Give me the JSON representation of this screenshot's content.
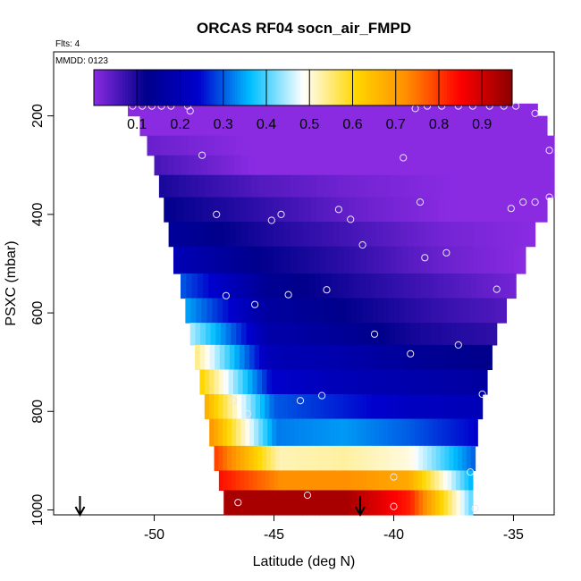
{
  "chart_data": {
    "type": "heatmap",
    "title": "ORCAS RF04 socn_air_FMPD",
    "flights_label": "Flts: 4",
    "date_label": "MMDD: 0123",
    "xlabel": "Latitude (deg N)",
    "ylabel": "PSXC (mbar)",
    "xlim": [
      -54.2,
      -33.3
    ],
    "ylim": [
      1010,
      70
    ],
    "x_ticks": [
      -50,
      -45,
      -40,
      -35
    ],
    "x_tick_labels": [
      "-50",
      "-45",
      "-40",
      "-35"
    ],
    "y_ticks": [
      200,
      400,
      600,
      800,
      1000
    ],
    "y_tick_labels": [
      "200",
      "400",
      "600",
      "800",
      "1000"
    ],
    "colorbar": {
      "ticks": [
        0.1,
        0.2,
        0.3,
        0.4,
        0.5,
        0.6,
        0.7,
        0.8,
        0.9
      ],
      "tick_labels": [
        "0.1",
        "0.2",
        "0.3",
        "0.4",
        "0.5",
        "0.6",
        "0.7",
        "0.8",
        "0.9"
      ],
      "range": [
        0,
        0.97
      ],
      "colors": [
        "#8a2be2",
        "#00008b",
        "#0000cd",
        "#00bfff",
        "#ffffff",
        "#ffd700",
        "#ff8c00",
        "#ff0000",
        "#8b0000"
      ]
    },
    "bands": [
      {
        "p_top": 175,
        "p_bot": 200,
        "lat_min": -51.1,
        "lat_max": -34.0,
        "values": [
          0.0,
          0.0,
          0.0,
          0.0,
          0.0
        ]
      },
      {
        "p_top": 200,
        "p_bot": 240,
        "lat_min": -50.6,
        "lat_max": -33.6,
        "values": [
          0.0,
          0.0,
          0.0,
          0.0,
          0.0
        ]
      },
      {
        "p_top": 240,
        "p_bot": 280,
        "lat_min": -50.3,
        "lat_max": -33.3,
        "values": [
          0.03,
          0.0,
          0.0,
          0.0,
          0.0
        ]
      },
      {
        "p_top": 280,
        "p_bot": 320,
        "lat_min": -50.0,
        "lat_max": -33.3,
        "values": [
          0.06,
          0.0,
          0.0,
          0.0,
          0.0
        ]
      },
      {
        "p_top": 320,
        "p_bot": 365,
        "lat_min": -49.8,
        "lat_max": -33.3,
        "values": [
          0.1,
          0.05,
          0.02,
          0.0,
          0.0
        ]
      },
      {
        "p_top": 365,
        "p_bot": 415,
        "lat_min": -49.6,
        "lat_max": -33.6,
        "values": [
          0.12,
          0.08,
          0.03,
          0.0,
          0.0
        ]
      },
      {
        "p_top": 415,
        "p_bot": 465,
        "lat_min": -49.4,
        "lat_max": -34.1,
        "values": [
          0.15,
          0.1,
          0.06,
          0.02,
          0.0
        ]
      },
      {
        "p_top": 465,
        "p_bot": 520,
        "lat_min": -49.2,
        "lat_max": -34.5,
        "values": [
          0.2,
          0.12,
          0.08,
          0.03,
          0.0
        ]
      },
      {
        "p_top": 520,
        "p_bot": 570,
        "lat_min": -48.9,
        "lat_max": -34.9,
        "values": [
          0.3,
          0.14,
          0.1,
          0.06,
          0.02
        ]
      },
      {
        "p_top": 570,
        "p_bot": 620,
        "lat_min": -48.7,
        "lat_max": -35.3,
        "values": [
          0.35,
          0.16,
          0.12,
          0.08,
          0.05
        ]
      },
      {
        "p_top": 620,
        "p_bot": 665,
        "lat_min": -48.5,
        "lat_max": -35.7,
        "values": [
          0.45,
          0.18,
          0.14,
          0.1,
          0.08
        ]
      },
      {
        "p_top": 665,
        "p_bot": 715,
        "lat_min": -48.3,
        "lat_max": -35.9,
        "values": [
          0.55,
          0.2,
          0.18,
          0.14,
          0.12
        ]
      },
      {
        "p_top": 715,
        "p_bot": 765,
        "lat_min": -48.1,
        "lat_max": -36.1,
        "values": [
          0.62,
          0.24,
          0.2,
          0.18,
          0.16
        ]
      },
      {
        "p_top": 765,
        "p_bot": 815,
        "lat_min": -47.9,
        "lat_max": -36.3,
        "values": [
          0.68,
          0.3,
          0.26,
          0.22,
          0.2
        ]
      },
      {
        "p_top": 815,
        "p_bot": 870,
        "lat_min": -47.7,
        "lat_max": -36.5,
        "values": [
          0.72,
          0.32,
          0.34,
          0.3,
          0.24
        ]
      },
      {
        "p_top": 870,
        "p_bot": 920,
        "lat_min": -47.5,
        "lat_max": -36.6,
        "values": [
          0.8,
          0.52,
          0.53,
          0.5,
          0.3
        ]
      },
      {
        "p_top": 920,
        "p_bot": 960,
        "lat_min": -47.3,
        "lat_max": -36.7,
        "values": [
          0.84,
          0.72,
          0.72,
          0.68,
          0.35
        ]
      },
      {
        "p_top": 960,
        "p_bot": 1010,
        "lat_min": -47.1,
        "lat_max": -36.7,
        "values": [
          0.94,
          0.94,
          0.94,
          0.82,
          0.4
        ]
      }
    ],
    "points": [
      {
        "lat": -50.9,
        "p": 180
      },
      {
        "lat": -50.5,
        "p": 180
      },
      {
        "lat": -50.1,
        "p": 180
      },
      {
        "lat": -49.7,
        "p": 180
      },
      {
        "lat": -49.3,
        "p": 180
      },
      {
        "lat": -48.6,
        "p": 180
      },
      {
        "lat": -48.5,
        "p": 190
      },
      {
        "lat": -39.1,
        "p": 185
      },
      {
        "lat": -38.6,
        "p": 180
      },
      {
        "lat": -38.0,
        "p": 180
      },
      {
        "lat": -37.3,
        "p": 180
      },
      {
        "lat": -36.7,
        "p": 180
      },
      {
        "lat": -36.0,
        "p": 180
      },
      {
        "lat": -35.4,
        "p": 180
      },
      {
        "lat": -34.9,
        "p": 180
      },
      {
        "lat": -34.1,
        "p": 195
      },
      {
        "lat": -33.5,
        "p": 270
      },
      {
        "lat": -48.0,
        "p": 280
      },
      {
        "lat": -39.6,
        "p": 285
      },
      {
        "lat": -33.5,
        "p": 365
      },
      {
        "lat": -34.6,
        "p": 375
      },
      {
        "lat": -35.1,
        "p": 388
      },
      {
        "lat": -38.9,
        "p": 375
      },
      {
        "lat": -34.1,
        "p": 375
      },
      {
        "lat": -47.4,
        "p": 400
      },
      {
        "lat": -45.1,
        "p": 412
      },
      {
        "lat": -44.7,
        "p": 400
      },
      {
        "lat": -42.3,
        "p": 390
      },
      {
        "lat": -41.8,
        "p": 410
      },
      {
        "lat": -41.3,
        "p": 462
      },
      {
        "lat": -38.7,
        "p": 488
      },
      {
        "lat": -37.8,
        "p": 478
      },
      {
        "lat": -47.0,
        "p": 565
      },
      {
        "lat": -45.8,
        "p": 583
      },
      {
        "lat": -44.4,
        "p": 563
      },
      {
        "lat": -42.8,
        "p": 553
      },
      {
        "lat": -35.7,
        "p": 552
      },
      {
        "lat": -40.8,
        "p": 643
      },
      {
        "lat": -39.3,
        "p": 683
      },
      {
        "lat": -37.3,
        "p": 665
      },
      {
        "lat": -46.7,
        "p": 778
      },
      {
        "lat": -46.1,
        "p": 805
      },
      {
        "lat": -43.9,
        "p": 778
      },
      {
        "lat": -43.0,
        "p": 768
      },
      {
        "lat": -36.3,
        "p": 765
      },
      {
        "lat": -40.0,
        "p": 933
      },
      {
        "lat": -36.8,
        "p": 923
      },
      {
        "lat": -46.5,
        "p": 985
      },
      {
        "lat": -43.6,
        "p": 970
      },
      {
        "lat": -40.0,
        "p": 993
      },
      {
        "lat": -36.6,
        "p": 997
      }
    ],
    "arrows_at_lat": [
      -53.1,
      -41.4
    ]
  }
}
